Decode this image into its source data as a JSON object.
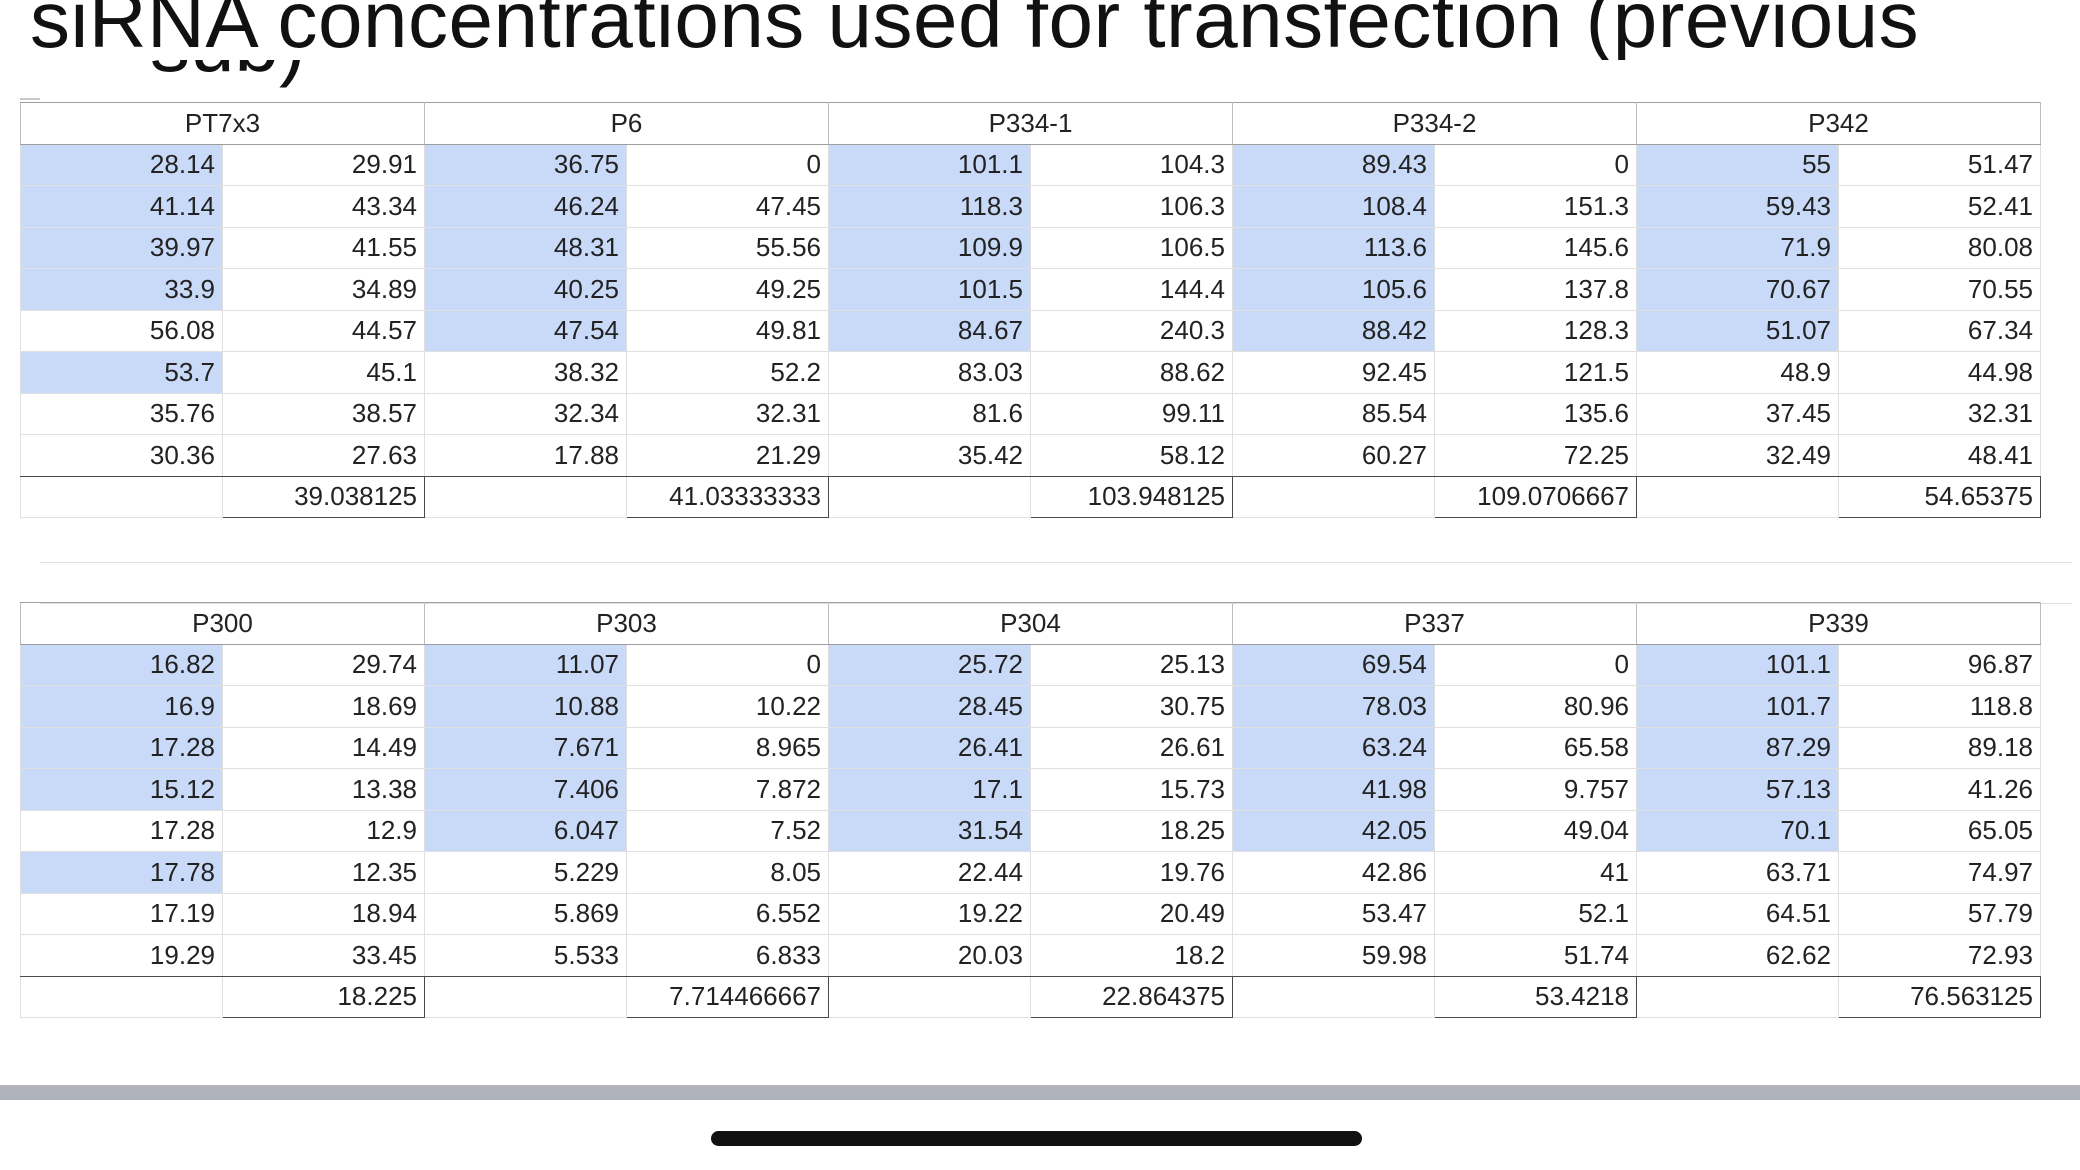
{
  "title": "siRNA concentrations used for transfection (previous",
  "title_cont": "sub)",
  "groups_top": [
    {
      "name": "PT7x3",
      "rows": [
        [
          "28.14",
          "29.91"
        ],
        [
          "41.14",
          "43.34"
        ],
        [
          "39.97",
          "41.55"
        ],
        [
          "33.9",
          "34.89"
        ],
        [
          "56.08",
          "44.57"
        ],
        [
          "53.7",
          "45.1"
        ],
        [
          "35.76",
          "38.57"
        ],
        [
          "30.36",
          "27.63"
        ]
      ],
      "highlight": [
        true,
        true,
        true,
        true,
        false,
        true,
        false,
        false
      ],
      "average": "39.038125"
    },
    {
      "name": "P6",
      "rows": [
        [
          "36.75",
          "0"
        ],
        [
          "46.24",
          "47.45"
        ],
        [
          "48.31",
          "55.56"
        ],
        [
          "40.25",
          "49.25"
        ],
        [
          "47.54",
          "49.81"
        ],
        [
          "38.32",
          "52.2"
        ],
        [
          "32.34",
          "32.31"
        ],
        [
          "17.88",
          "21.29"
        ]
      ],
      "highlight": [
        true,
        true,
        true,
        true,
        true,
        false,
        false,
        false
      ],
      "average": "41.03333333"
    },
    {
      "name": "P334-1",
      "rows": [
        [
          "101.1",
          "104.3"
        ],
        [
          "118.3",
          "106.3"
        ],
        [
          "109.9",
          "106.5"
        ],
        [
          "101.5",
          "144.4"
        ],
        [
          "84.67",
          "240.3"
        ],
        [
          "83.03",
          "88.62"
        ],
        [
          "81.6",
          "99.11"
        ],
        [
          "35.42",
          "58.12"
        ]
      ],
      "highlight": [
        true,
        true,
        true,
        true,
        true,
        false,
        false,
        false
      ],
      "average": "103.948125"
    },
    {
      "name": "P334-2",
      "rows": [
        [
          "89.43",
          "0"
        ],
        [
          "108.4",
          "151.3"
        ],
        [
          "113.6",
          "145.6"
        ],
        [
          "105.6",
          "137.8"
        ],
        [
          "88.42",
          "128.3"
        ],
        [
          "92.45",
          "121.5"
        ],
        [
          "85.54",
          "135.6"
        ],
        [
          "60.27",
          "72.25"
        ]
      ],
      "highlight": [
        true,
        true,
        true,
        true,
        true,
        false,
        false,
        false
      ],
      "average": "109.0706667"
    },
    {
      "name": "P342",
      "rows": [
        [
          "55",
          "51.47"
        ],
        [
          "59.43",
          "52.41"
        ],
        [
          "71.9",
          "80.08"
        ],
        [
          "70.67",
          "70.55"
        ],
        [
          "51.07",
          "67.34"
        ],
        [
          "48.9",
          "44.98"
        ],
        [
          "37.45",
          "32.31"
        ],
        [
          "32.49",
          "48.41"
        ]
      ],
      "highlight": [
        true,
        true,
        true,
        true,
        true,
        false,
        false,
        false
      ],
      "average": "54.65375"
    }
  ],
  "groups_bottom": [
    {
      "name": "P300",
      "rows": [
        [
          "16.82",
          "29.74"
        ],
        [
          "16.9",
          "18.69"
        ],
        [
          "17.28",
          "14.49"
        ],
        [
          "15.12",
          "13.38"
        ],
        [
          "17.28",
          "12.9"
        ],
        [
          "17.78",
          "12.35"
        ],
        [
          "17.19",
          "18.94"
        ],
        [
          "19.29",
          "33.45"
        ]
      ],
      "highlight": [
        true,
        true,
        true,
        true,
        false,
        true,
        false,
        false
      ],
      "average": "18.225"
    },
    {
      "name": "P303",
      "rows": [
        [
          "11.07",
          "0"
        ],
        [
          "10.88",
          "10.22"
        ],
        [
          "7.671",
          "8.965"
        ],
        [
          "7.406",
          "7.872"
        ],
        [
          "6.047",
          "7.52"
        ],
        [
          "5.229",
          "8.05"
        ],
        [
          "5.869",
          "6.552"
        ],
        [
          "5.533",
          "6.833"
        ]
      ],
      "highlight": [
        true,
        true,
        true,
        true,
        true,
        false,
        false,
        false
      ],
      "average": "7.714466667"
    },
    {
      "name": "P304",
      "rows": [
        [
          "25.72",
          "25.13"
        ],
        [
          "28.45",
          "30.75"
        ],
        [
          "26.41",
          "26.61"
        ],
        [
          "17.1",
          "15.73"
        ],
        [
          "31.54",
          "18.25"
        ],
        [
          "22.44",
          "19.76"
        ],
        [
          "19.22",
          "20.49"
        ],
        [
          "20.03",
          "18.2"
        ]
      ],
      "highlight": [
        true,
        true,
        true,
        true,
        true,
        false,
        false,
        false
      ],
      "average": "22.864375"
    },
    {
      "name": "P337",
      "rows": [
        [
          "69.54",
          "0"
        ],
        [
          "78.03",
          "80.96"
        ],
        [
          "63.24",
          "65.58"
        ],
        [
          "41.98",
          "9.757"
        ],
        [
          "42.05",
          "49.04"
        ],
        [
          "42.86",
          "41"
        ],
        [
          "53.47",
          "52.1"
        ],
        [
          "59.98",
          "51.74"
        ]
      ],
      "highlight": [
        true,
        true,
        true,
        true,
        true,
        false,
        false,
        false
      ],
      "average": "53.4218"
    },
    {
      "name": "P339",
      "rows": [
        [
          "101.1",
          "96.87"
        ],
        [
          "101.7",
          "118.8"
        ],
        [
          "87.29",
          "89.18"
        ],
        [
          "57.13",
          "41.26"
        ],
        [
          "70.1",
          "65.05"
        ],
        [
          "63.71",
          "74.97"
        ],
        [
          "64.51",
          "57.79"
        ],
        [
          "62.62",
          "72.93"
        ]
      ],
      "highlight": [
        true,
        true,
        true,
        true,
        true,
        false,
        false,
        false
      ],
      "average": "76.563125"
    }
  ],
  "colors": {
    "highlight": "#c9daf8",
    "grid": "#e0e0e0",
    "border_dark": "#4a4a4a",
    "bottom_bar": "#b0b3bb"
  }
}
